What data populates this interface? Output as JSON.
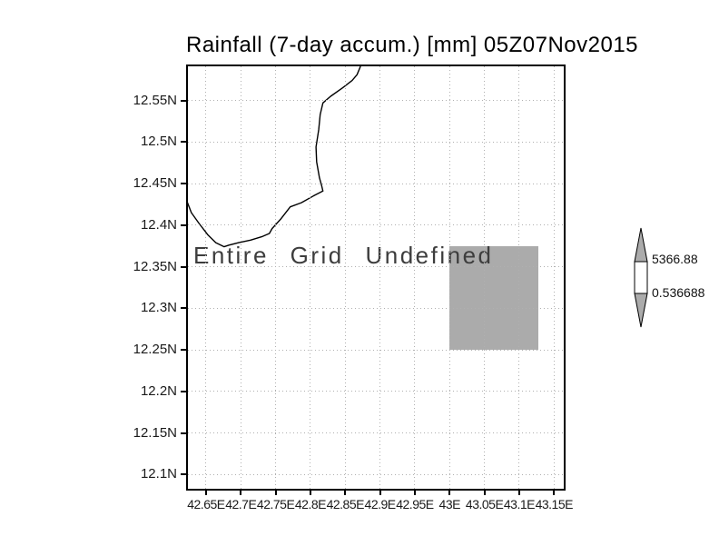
{
  "title": "Rainfall (7-day accum.) [mm] 05Z07Nov2015",
  "status_message": "Entire Grid Undefined",
  "colorbar": {
    "max_label": "5366.88",
    "min_label": "0.536688",
    "max_value": 5366.88,
    "min_value": 0.536688,
    "arrow_fill": "#ababab",
    "box_fill": "#ffffff",
    "outline": "#000000"
  },
  "colors": {
    "background": "#ffffff",
    "frame": "#000000",
    "grid_dots": "#b0b0b0",
    "coastline": "#000000",
    "undefined_region_fill": "#ababab"
  },
  "chart_data": {
    "type": "map",
    "title": "Rainfall (7-day accum.) [mm] 05Z07Nov2015",
    "subtitle": "",
    "status": "Entire Grid Undefined",
    "grid": "dotted",
    "legend_position": "right-colorbar",
    "lon_range": [
      42.624,
      43.164
    ],
    "lat_range": [
      12.083,
      12.591
    ],
    "x_ticks": [
      42.65,
      42.7,
      42.75,
      42.8,
      42.85,
      42.9,
      42.95,
      43.0,
      43.05,
      43.1,
      43.15
    ],
    "x_tick_labels": [
      "42.65E",
      "42.7E",
      "42.75E",
      "42.8E",
      "42.85E",
      "42.9E",
      "42.95E",
      "43E",
      "43.05E",
      "43.1E",
      "43.15E"
    ],
    "y_ticks": [
      12.55,
      12.5,
      12.45,
      12.4,
      12.35,
      12.3,
      12.25,
      12.2,
      12.15,
      12.1
    ],
    "y_tick_labels": [
      "12.55N",
      "12.5N",
      "12.45N",
      "12.4N",
      "12.35N",
      "12.3N",
      "12.25N",
      "12.2N",
      "12.15N",
      "12.1N"
    ],
    "colorbar": {
      "min": 0.536688,
      "max": 5366.88
    },
    "undefined_region": {
      "lon_min": 43.0,
      "lon_max": 43.128,
      "lat_min": 12.25,
      "lat_max": 12.375,
      "fill": "#ababab"
    },
    "coastline": [
      [
        42.872,
        12.591
      ],
      [
        42.867,
        12.581
      ],
      [
        42.86,
        12.574
      ],
      [
        42.846,
        12.565
      ],
      [
        42.829,
        12.555
      ],
      [
        42.818,
        12.547
      ],
      [
        42.814,
        12.533
      ],
      [
        42.812,
        12.515
      ],
      [
        42.808,
        12.494
      ],
      [
        42.809,
        12.476
      ],
      [
        42.813,
        12.457
      ],
      [
        42.816,
        12.448
      ],
      [
        42.818,
        12.441
      ],
      [
        42.804,
        12.435
      ],
      [
        42.787,
        12.427
      ],
      [
        42.771,
        12.422
      ],
      [
        42.757,
        12.407
      ],
      [
        42.745,
        12.396
      ],
      [
        42.741,
        12.39
      ],
      [
        42.73,
        12.386
      ],
      [
        42.714,
        12.382
      ],
      [
        42.697,
        12.379
      ],
      [
        42.683,
        12.376
      ],
      [
        42.676,
        12.374
      ],
      [
        42.664,
        12.379
      ],
      [
        42.653,
        12.388
      ],
      [
        42.64,
        12.402
      ],
      [
        42.629,
        12.415
      ],
      [
        42.623,
        12.428
      ]
    ]
  }
}
